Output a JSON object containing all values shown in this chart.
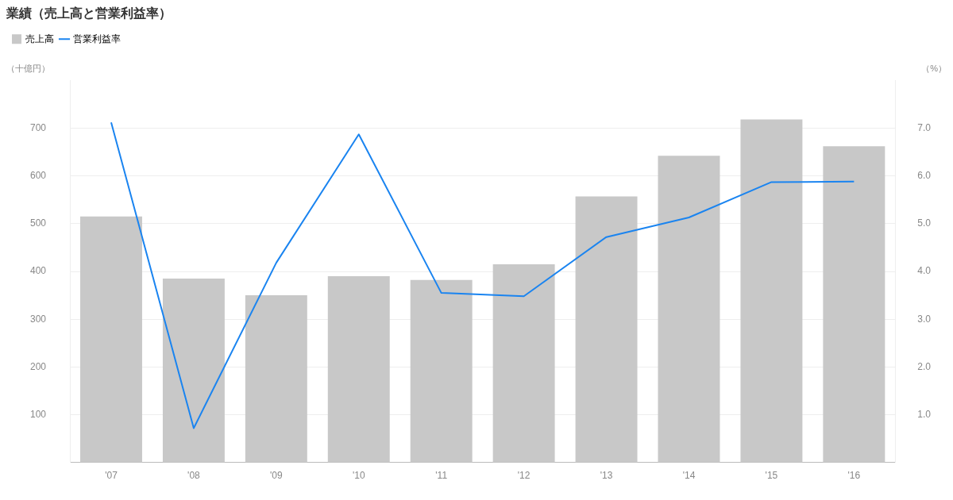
{
  "chart_data": {
    "type": "bar",
    "title": "業績（売上高と営業利益率）",
    "categories": [
      "'07",
      "'08",
      "'09",
      "'10",
      "'11",
      "'12",
      "'13",
      "'14",
      "'15",
      "'16"
    ],
    "series": [
      {
        "name": "売上高",
        "color": "#c8c8c8",
        "values": [
          515,
          385,
          350,
          390,
          382,
          415,
          557,
          642,
          718,
          662
        ]
      },
      {
        "name": "営業利益率",
        "type": "line",
        "axis": "y2",
        "color": "#1a84f0",
        "values": [
          7.12,
          0.72,
          4.18,
          6.87,
          3.55,
          3.48,
          4.72,
          5.13,
          5.87,
          5.88
        ]
      }
    ],
    "ylabel": "（十億円）",
    "y2label": "（%）",
    "ylim": [
      0,
      800
    ],
    "yticks": [
      100,
      200,
      300,
      400,
      500,
      600,
      700
    ],
    "y2lim": [
      0,
      8
    ],
    "y2ticks": [
      {
        "value": 1,
        "label": "1.0"
      },
      {
        "value": 2,
        "label": "2.0"
      },
      {
        "value": 3,
        "label": "3.0"
      },
      {
        "value": 4,
        "label": "4.0"
      },
      {
        "value": 5,
        "label": "5.0"
      },
      {
        "value": 6,
        "label": "6.0"
      },
      {
        "value": 7,
        "label": "7.0"
      }
    ],
    "grid": "y",
    "legend": "top left",
    "marker": "none",
    "line_style": "solid"
  }
}
